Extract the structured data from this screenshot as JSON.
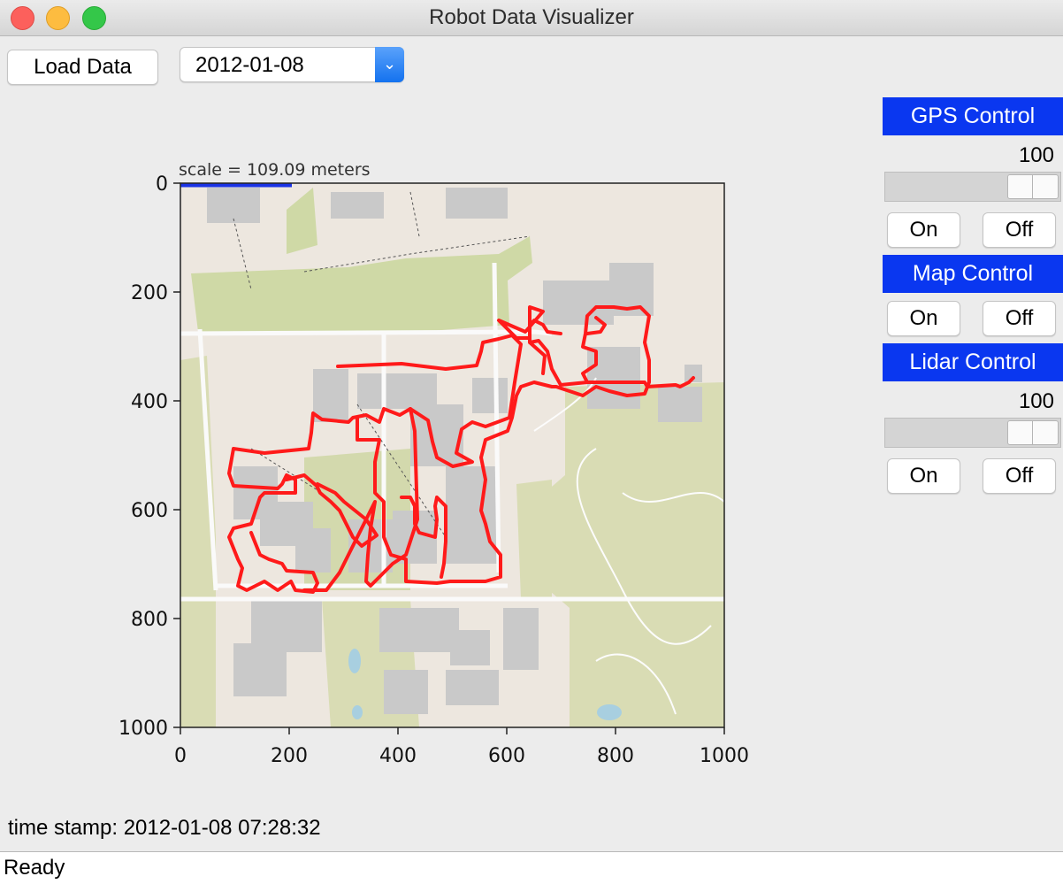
{
  "window": {
    "title": "Robot Data Visualizer"
  },
  "toolbar": {
    "load_label": "Load Data",
    "date_value": "2012-01-08"
  },
  "controls": {
    "gps": {
      "title": "GPS Control",
      "slider_value": "100",
      "on_label": "On",
      "off_label": "Off"
    },
    "map": {
      "title": "Map Control",
      "on_label": "On",
      "off_label": "Off"
    },
    "lidar": {
      "title": "Lidar Control",
      "slider_value": "100",
      "on_label": "On",
      "off_label": "Off"
    }
  },
  "plot": {
    "scale_label": "scale = 109.09 meters",
    "x_ticks": [
      "0",
      "200",
      "400",
      "600",
      "800",
      "1000"
    ],
    "y_ticks": [
      "0",
      "200",
      "400",
      "600",
      "800",
      "1000"
    ]
  },
  "timestamp": "time stamp: 2012-01-08 07:28:32",
  "status": "Ready",
  "colors": {
    "header_blue": "#0a37f0",
    "trajectory": "#ff1a1a",
    "scale_bar": "#1a33e6"
  }
}
